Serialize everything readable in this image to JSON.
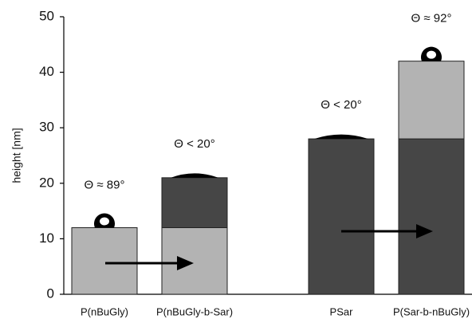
{
  "chart_data": {
    "type": "stacked-bar",
    "ylabel": "height [nm]",
    "categories": [
      "P(nBuGly)",
      "P(nBuGly-b-Sar)",
      "PSar",
      "P(Sar-b-nBuGly)"
    ],
    "series": [
      {
        "values": [
          12,
          12,
          28,
          28
        ],
        "colors": [
          "#b3b3b3",
          "#b3b3b3",
          "#464646",
          "#464646"
        ]
      },
      {
        "values": [
          null,
          9,
          null,
          14
        ],
        "colors": [
          null,
          "#464646",
          null,
          "#b3b3b3"
        ]
      }
    ],
    "annotations": [
      "Θ ≈ 89°",
      "Θ < 20°",
      "Θ < 20°",
      "Θ ≈ 92°"
    ],
    "ylim": [
      0,
      50
    ],
    "yticks": [
      0,
      10,
      20,
      30,
      40,
      50
    ]
  }
}
